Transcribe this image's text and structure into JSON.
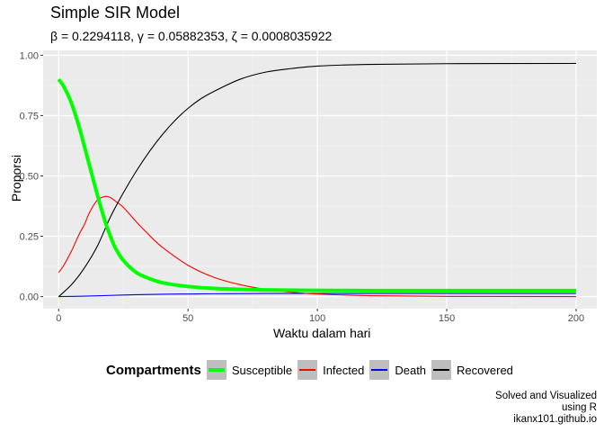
{
  "chart_data": {
    "type": "line",
    "title": "Simple SIR Model",
    "subtitle": "β = 0.2294118,  γ = 0.05882353,  ζ = 0.0008035922",
    "xlabel": "Waktu dalam hari",
    "ylabel": "Proporsi",
    "xlim": [
      -6,
      208
    ],
    "ylim": [
      -0.05,
      1.02
    ],
    "x_ticks": [
      0,
      50,
      100,
      150,
      200
    ],
    "x_tick_labels": [
      "0",
      "50",
      "100",
      "150",
      "200"
    ],
    "y_ticks": [
      0,
      0.25,
      0.5,
      0.75,
      1.0
    ],
    "y_tick_labels": [
      "0.00",
      "0.25",
      "0.50",
      "0.75",
      "1.00"
    ],
    "grid": true,
    "legend_position": "bottom",
    "legend_title": "Compartments",
    "series": [
      {
        "name": "Susceptible",
        "color": "#00ff00",
        "x": [
          0,
          2,
          5,
          8,
          10,
          12,
          15,
          18,
          20,
          22,
          25,
          30,
          35,
          40,
          50,
          60,
          70,
          80,
          100,
          120,
          150,
          200
        ],
        "y": [
          0.9,
          0.87,
          0.8,
          0.7,
          0.62,
          0.54,
          0.42,
          0.31,
          0.25,
          0.2,
          0.15,
          0.1,
          0.075,
          0.058,
          0.042,
          0.034,
          0.03,
          0.028,
          0.026,
          0.025,
          0.025,
          0.025
        ]
      },
      {
        "name": "Infected",
        "color": "#ff0000",
        "x": [
          0,
          2,
          5,
          8,
          10,
          12,
          15,
          18,
          20,
          22,
          25,
          30,
          35,
          40,
          50,
          60,
          70,
          80,
          90,
          100,
          120,
          150,
          200
        ],
        "y": [
          0.1,
          0.13,
          0.19,
          0.26,
          0.3,
          0.35,
          0.4,
          0.415,
          0.41,
          0.395,
          0.37,
          0.31,
          0.255,
          0.205,
          0.13,
          0.08,
          0.05,
          0.03,
          0.018,
          0.011,
          0.004,
          0.001,
          0.0
        ]
      },
      {
        "name": "Death",
        "color": "#0000ff",
        "x": [
          0,
          10,
          20,
          30,
          40,
          50,
          60,
          80,
          100,
          150,
          200
        ],
        "y": [
          0.0,
          0.002,
          0.005,
          0.008,
          0.01,
          0.011,
          0.012,
          0.013,
          0.013,
          0.013,
          0.013
        ]
      },
      {
        "name": "Recovered",
        "color": "#000000",
        "x": [
          0,
          5,
          10,
          15,
          20,
          25,
          30,
          35,
          40,
          45,
          50,
          55,
          60,
          70,
          80,
          90,
          100,
          120,
          150,
          200
        ],
        "y": [
          0.0,
          0.05,
          0.12,
          0.21,
          0.33,
          0.43,
          0.52,
          0.6,
          0.67,
          0.73,
          0.78,
          0.82,
          0.85,
          0.9,
          0.93,
          0.945,
          0.955,
          0.962,
          0.965,
          0.966
        ]
      }
    ]
  },
  "caption_lines": [
    "Solved and Visualized",
    "using R",
    "ikanx101.github.io"
  ]
}
